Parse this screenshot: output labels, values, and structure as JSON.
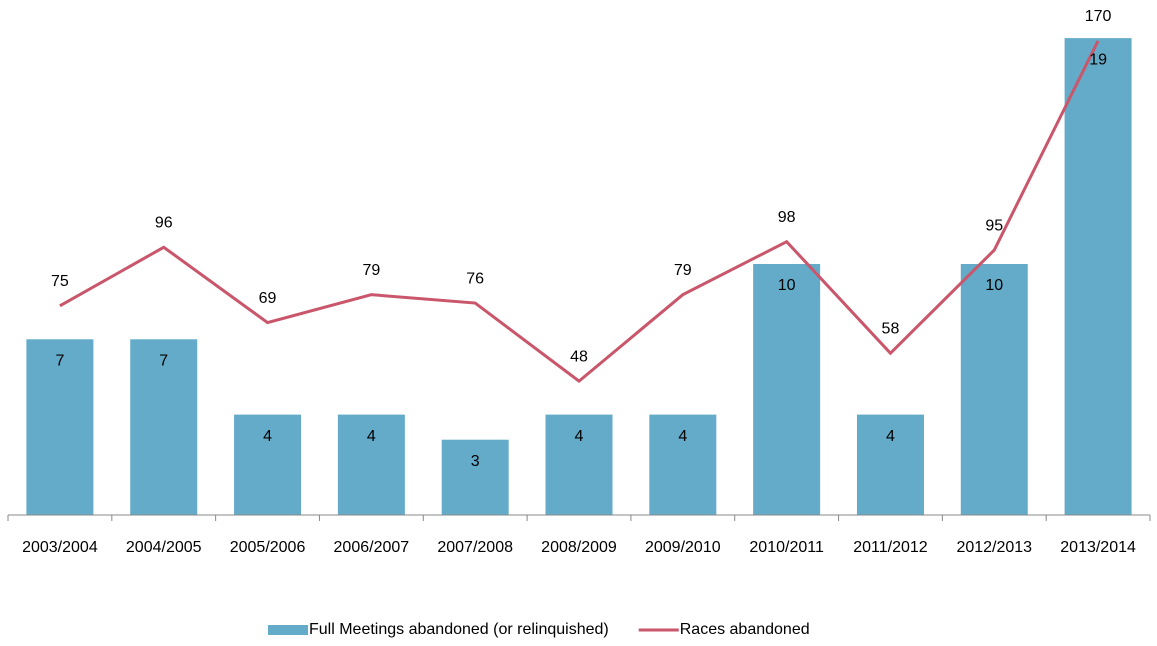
{
  "chart_data": {
    "type": "bar",
    "categories": [
      "2003/2004",
      "2004/2005",
      "2005/2006",
      "2006/2007",
      "2007/2008",
      "2008/2009",
      "2009/2010",
      "2010/2011",
      "2011/2012",
      "2012/2013",
      "2013/2014"
    ],
    "series": [
      {
        "name": "Full Meetings abandoned (or relinquished)",
        "type": "bar",
        "color": "#64abc9",
        "values": [
          7,
          7,
          4,
          4,
          3,
          4,
          4,
          10,
          4,
          10,
          19
        ]
      },
      {
        "name": "Races abandoned",
        "type": "line",
        "axis": "y2",
        "color": "#c9566a",
        "values": [
          75,
          96,
          69,
          79,
          76,
          48,
          79,
          98,
          58,
          95,
          170
        ]
      }
    ],
    "ylim": [
      0,
      20
    ],
    "y2lim": [
      0,
      180
    ],
    "legend": "bottom"
  }
}
